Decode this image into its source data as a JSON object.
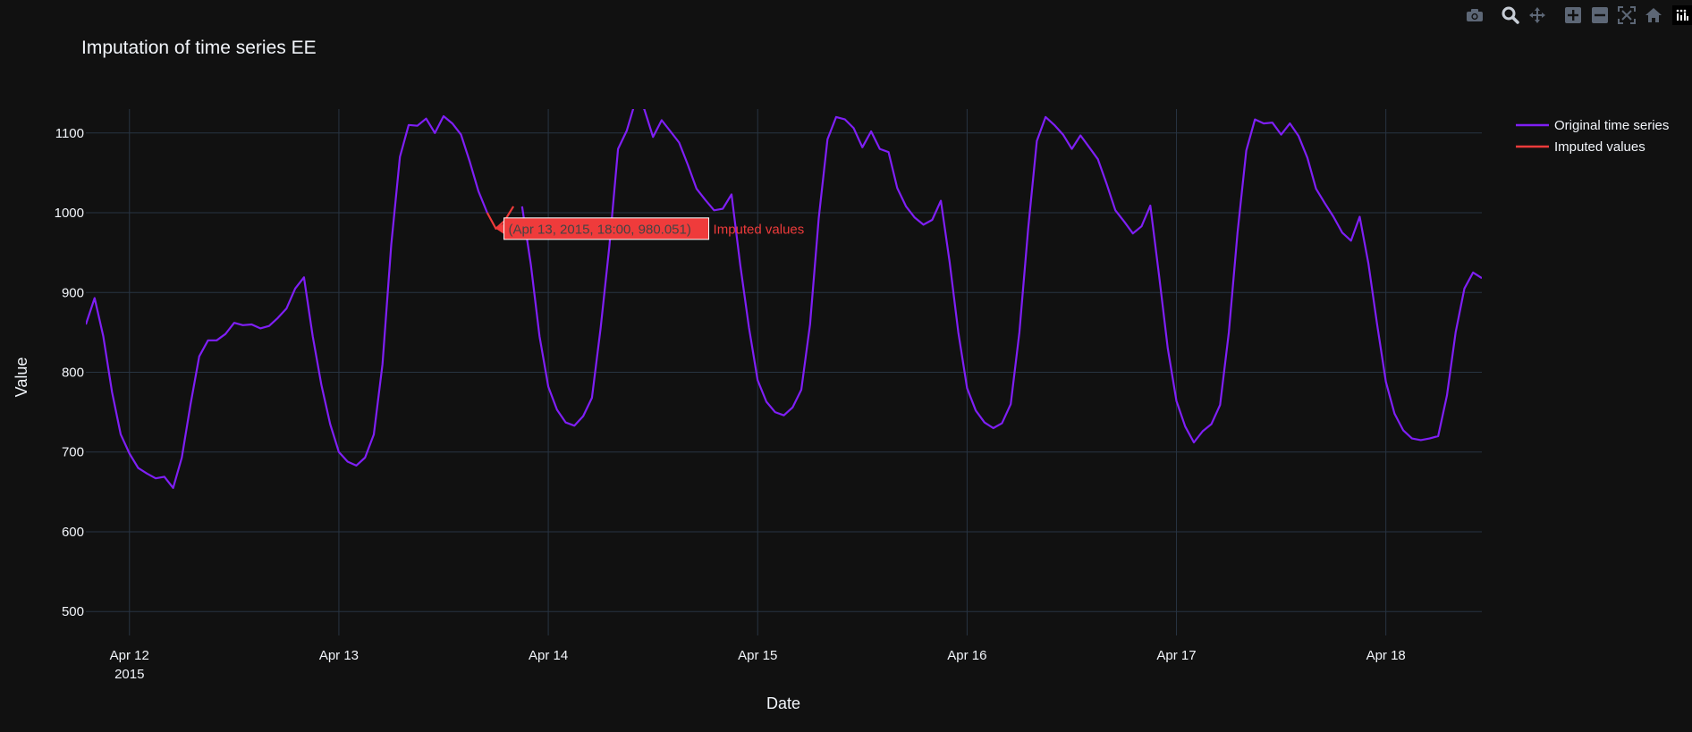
{
  "chart_data": {
    "type": "line",
    "title": "Imputation of time series EE",
    "xlabel": "Date",
    "ylabel": "Value",
    "x_start": "2015-04-11 19:00",
    "x_step_hours": 1,
    "x_ticks": [
      {
        "date": "2015-04-12 00:00",
        "label": "Apr 12",
        "sublabel": "2015"
      },
      {
        "date": "2015-04-13 00:00",
        "label": "Apr 13",
        "sublabel": ""
      },
      {
        "date": "2015-04-14 00:00",
        "label": "Apr 14",
        "sublabel": ""
      },
      {
        "date": "2015-04-15 00:00",
        "label": "Apr 15",
        "sublabel": ""
      },
      {
        "date": "2015-04-16 00:00",
        "label": "Apr 16",
        "sublabel": ""
      },
      {
        "date": "2015-04-17 00:00",
        "label": "Apr 17",
        "sublabel": ""
      },
      {
        "date": "2015-04-18 00:00",
        "label": "Apr 18",
        "sublabel": ""
      }
    ],
    "xlim": [
      "2015-04-11 19:00",
      "2015-04-18 11:00"
    ],
    "y_ticks": [
      500,
      600,
      700,
      800,
      900,
      1000,
      1100
    ],
    "ylim": [
      470,
      1130
    ],
    "grid": true,
    "legend_position": "top-right",
    "series": [
      {
        "name": "Original time series",
        "color": "#7f1ff5",
        "start": "2015-04-11 19:00",
        "values": [
          860,
          893,
          845,
          775,
          722,
          698,
          680,
          673,
          667,
          669,
          655,
          693,
          760,
          820,
          840,
          840,
          848,
          862,
          859,
          860,
          855,
          858,
          868,
          880,
          905,
          919,
          845,
          784,
          735,
          700,
          688,
          683,
          693,
          722,
          810,
          960,
          1070,
          1110,
          1109,
          1118,
          1100,
          1121,
          1112,
          1098,
          1064,
          1027,
          1000,
          null,
          null,
          null,
          1008,
          935,
          845,
          782,
          753,
          737,
          733,
          745,
          768,
          855,
          958,
          1080,
          1103,
          1140,
          1130,
          1095,
          1116,
          1102,
          1088,
          1060,
          1030,
          1016,
          1003,
          1005,
          1023,
          935,
          856,
          790,
          763,
          750,
          746,
          756,
          778,
          860,
          993,
          1092,
          1120,
          1117,
          1106,
          1082,
          1102,
          1080,
          1076,
          1031,
          1008,
          994,
          985,
          991,
          1015,
          938,
          850,
          780,
          752,
          737,
          730,
          736,
          760,
          850,
          980,
          1090,
          1120,
          1110,
          1098,
          1080,
          1097,
          1082,
          1067,
          1036,
          1003,
          989,
          974,
          983,
          1009,
          922,
          830,
          764,
          732,
          712,
          726,
          735,
          759,
          850,
          975,
          1078,
          1117,
          1112,
          1113,
          1098,
          1112,
          1096,
          1069,
          1030,
          1012,
          995,
          975,
          965,
          995,
          936,
          860,
          788,
          748,
          727,
          717,
          715,
          717,
          720,
          771,
          850,
          905,
          925,
          918
        ]
      },
      {
        "name": "Imputed values",
        "color": "#ef3b3b",
        "start": "2015-04-13 17:00",
        "values": [
          1000,
          980.051,
          990,
          1008
        ]
      }
    ],
    "hover_label": {
      "text": "(Apr 13, 2015, 18:00, 980.051)",
      "series_name": "Imputed values",
      "date": "2015-04-13 18:00",
      "value": 980.051
    }
  },
  "modebar": {
    "buttons": [
      "camera-icon",
      "zoom-icon",
      "pan-icon",
      "zoom-in-icon",
      "zoom-out-icon",
      "autoscale-icon",
      "home-icon"
    ],
    "logo": "plotly-logo"
  }
}
